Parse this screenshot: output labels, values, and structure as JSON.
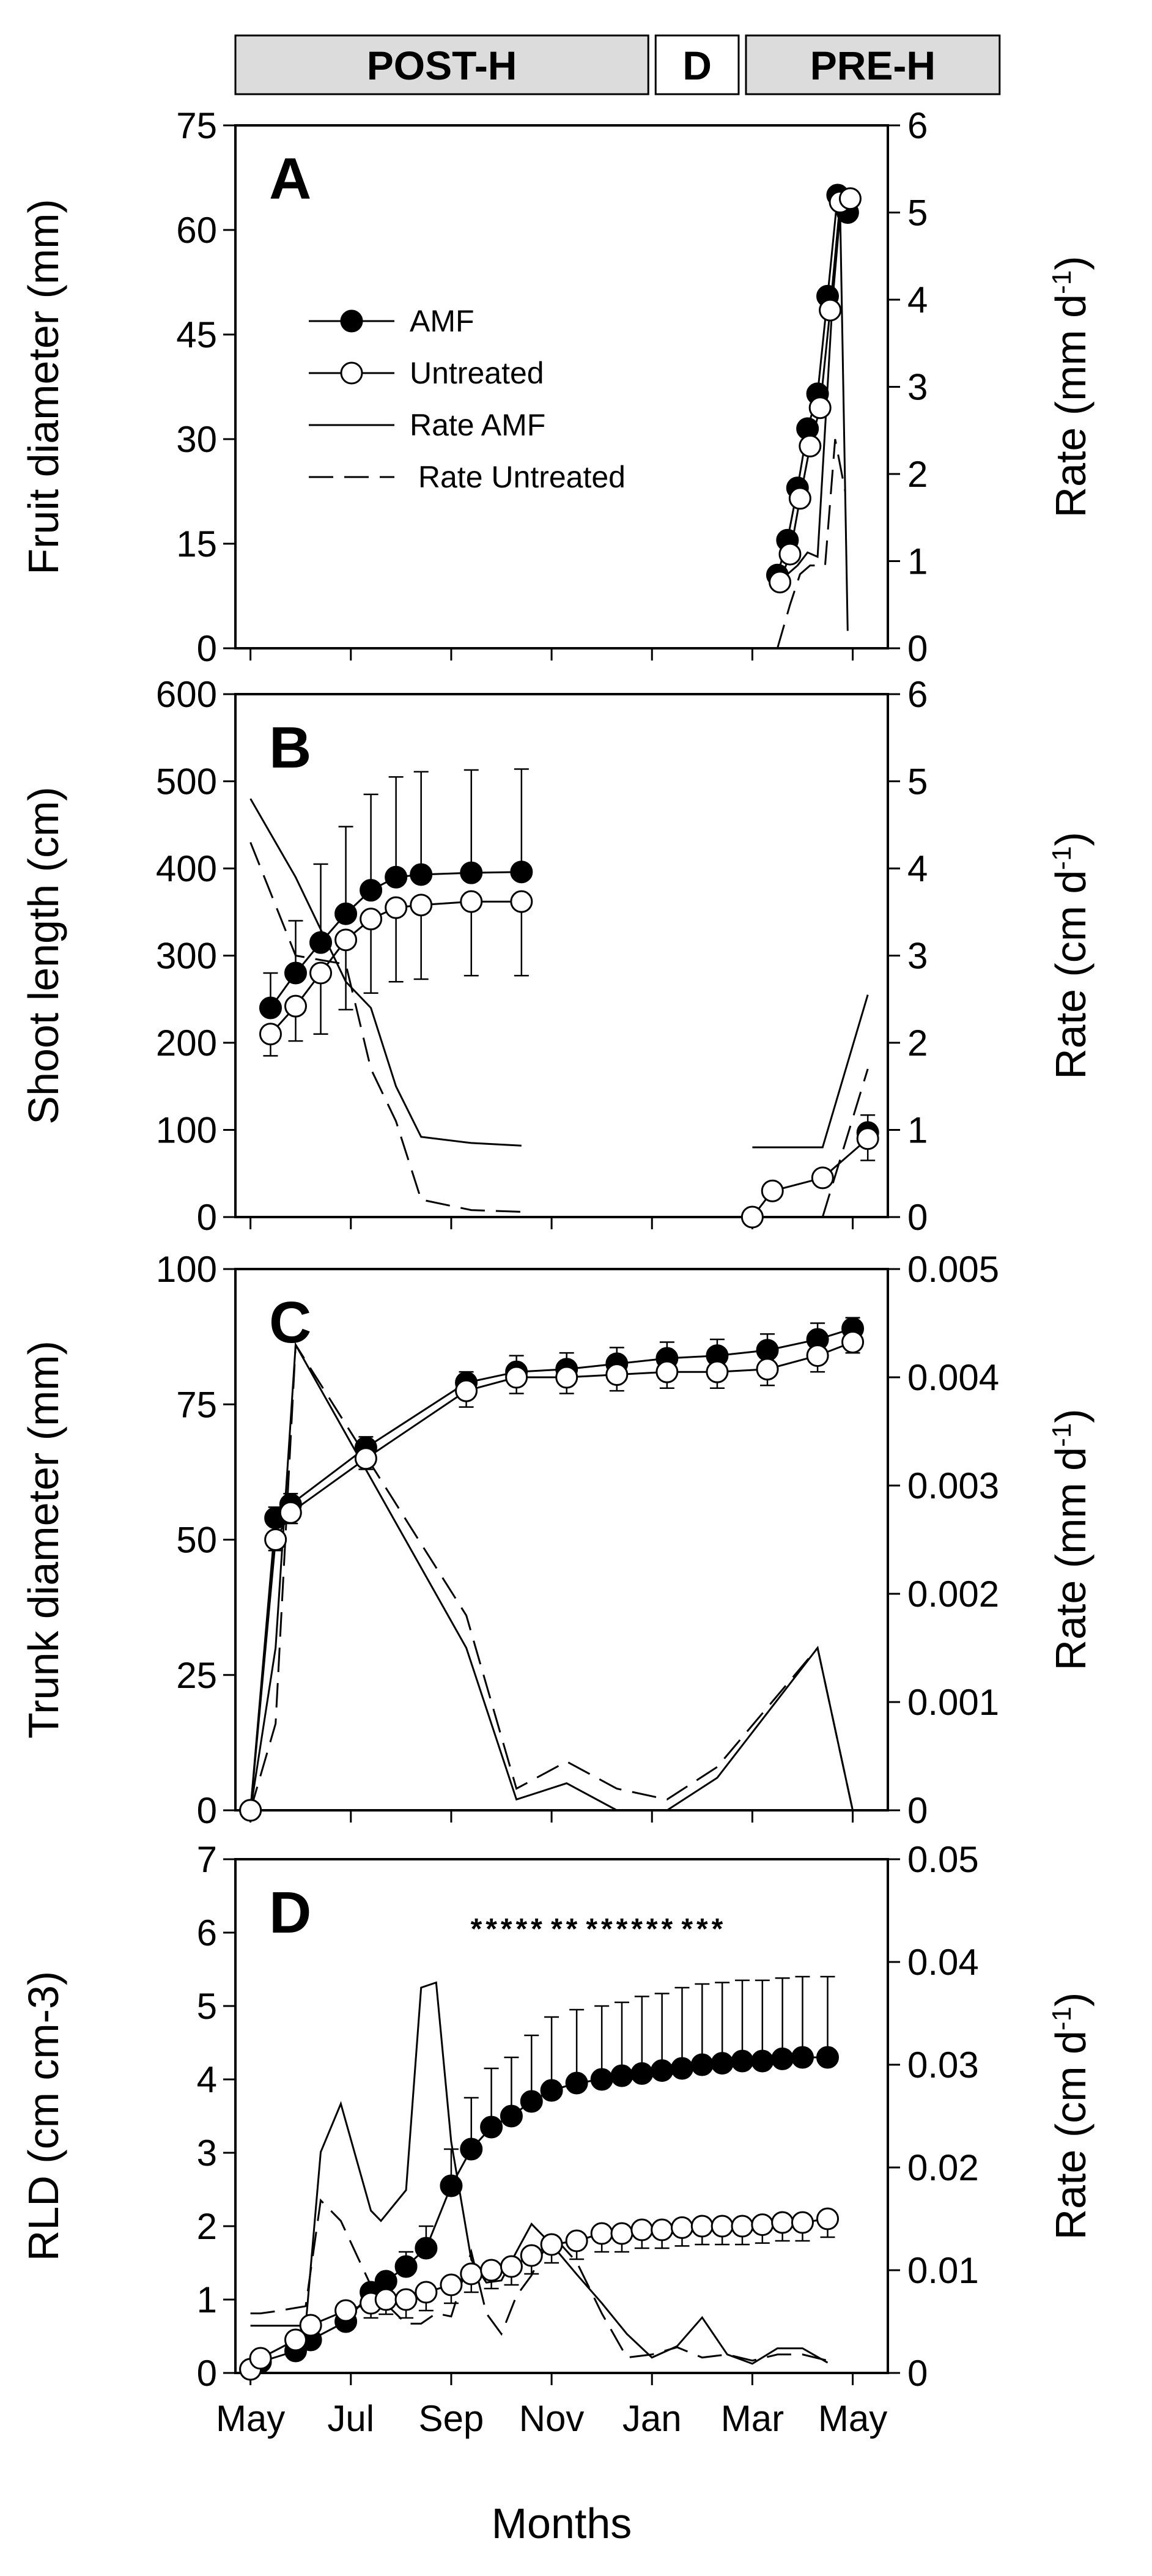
{
  "phases": [
    {
      "label": "POST-H",
      "x0": -0.3,
      "x1": 8.0,
      "fill": "#dcdcdc"
    },
    {
      "label": "D",
      "x0": 8.0,
      "x1": 9.8,
      "fill": "#ffffff"
    },
    {
      "label": "PRE-H",
      "x0": 9.8,
      "x1": 15.0,
      "fill": "#dcdcdc"
    }
  ],
  "x_axis": {
    "label": "Months",
    "tick_values": [
      0,
      2,
      4,
      6,
      8,
      10,
      12
    ],
    "tick_labels": [
      "May",
      "Jul",
      "Sep",
      "Nov",
      "Jan",
      "Mar",
      "May"
    ],
    "range": [
      -0.3,
      12.7
    ]
  },
  "legend": {
    "entries": [
      {
        "label": "AMF",
        "kind": "filled-marker"
      },
      {
        "label": "Untreated",
        "kind": "open-marker"
      },
      {
        "label": "Rate AMF",
        "kind": "solid-line"
      },
      {
        "label": " Rate Untreated",
        "kind": "dashed-line"
      }
    ]
  },
  "chart_data": [
    {
      "panel": "A",
      "type": "line",
      "ylabel": "Fruit diameter (mm)",
      "ylim": [
        0,
        75
      ],
      "yticks": [
        0,
        15,
        30,
        45,
        60,
        75
      ],
      "y2label": "Rate (mm d-1)",
      "y2lim": [
        0,
        6
      ],
      "y2ticks": [
        0,
        1,
        2,
        3,
        4,
        5,
        6
      ],
      "series": [
        {
          "name": "AMF",
          "axis": "left",
          "style": "filled",
          "x": [
            10.5,
            10.7,
            10.9,
            11.1,
            11.3,
            11.5,
            11.7,
            11.9
          ],
          "y": [
            10.5,
            15.5,
            23,
            31.5,
            36.5,
            50.5,
            65,
            62.5
          ]
        },
        {
          "name": "Untreated",
          "axis": "left",
          "style": "open",
          "x": [
            10.55,
            10.75,
            10.95,
            11.15,
            11.35,
            11.55,
            11.75,
            11.95
          ],
          "y": [
            9.5,
            13.5,
            21.5,
            29,
            34.5,
            48.5,
            64,
            64.5
          ]
        },
        {
          "name": "Rate AMF",
          "axis": "right",
          "style": "solid",
          "x": [
            10.5,
            10.9,
            11.1,
            11.3,
            11.6,
            11.75,
            11.9
          ],
          "y": [
            0.75,
            0.95,
            1.1,
            1.05,
            4.0,
            5.0,
            0.2
          ]
        },
        {
          "name": "Rate Untreated",
          "axis": "right",
          "style": "dashed",
          "x": [
            10.5,
            10.75,
            10.95,
            11.15,
            11.45,
            11.65,
            11.85
          ],
          "y": [
            0.0,
            0.5,
            0.85,
            0.95,
            0.95,
            2.4,
            1.8
          ]
        }
      ]
    },
    {
      "panel": "B",
      "type": "line",
      "ylabel": "Shoot length (cm)",
      "ylim": [
        0,
        600
      ],
      "yticks": [
        0,
        100,
        200,
        300,
        400,
        500,
        600
      ],
      "y2label": "Rate (cm d-1)",
      "y2lim": [
        0,
        6
      ],
      "y2ticks": [
        0,
        1,
        2,
        3,
        4,
        5,
        6
      ],
      "series": [
        {
          "name": "AMF",
          "axis": "left",
          "style": "filled",
          "x": [
            0.4,
            0.9,
            1.4,
            1.9,
            2.4,
            2.9,
            3.4,
            4.4,
            5.4,
            12.3
          ],
          "y": [
            240,
            280,
            315,
            348,
            375,
            390,
            393,
            395,
            396,
            97
          ],
          "err": [
            40,
            60,
            90,
            100,
            110,
            115,
            118,
            118,
            118,
            20
          ]
        },
        {
          "name": "Untreated",
          "axis": "left",
          "style": "open",
          "x": [
            0.4,
            0.9,
            1.4,
            1.9,
            2.4,
            2.9,
            3.4,
            4.4,
            5.4,
            10.0,
            10.4,
            11.4,
            12.3
          ],
          "y": [
            210,
            242,
            280,
            318,
            342,
            355,
            358,
            362,
            362,
            0,
            30,
            45,
            90
          ],
          "err": [
            25,
            40,
            70,
            80,
            85,
            85,
            85,
            85,
            85,
            0,
            0,
            0,
            25
          ]
        },
        {
          "name": "Rate AMF",
          "axis": "right",
          "style": "solid",
          "x": [
            0.0,
            0.9,
            1.9,
            2.4,
            2.9,
            3.4,
            4.4,
            5.4,
            10.0,
            11.4,
            12.3
          ],
          "y": [
            4.8,
            3.9,
            2.7,
            2.4,
            1.5,
            0.92,
            0.85,
            0.82,
            0.8,
            0.8,
            2.55
          ],
          "segments": [
            [
              0,
              7
            ],
            [
              8,
              10
            ]
          ]
        },
        {
          "name": "Rate Untreated",
          "axis": "right",
          "style": "dashed",
          "x": [
            0.0,
            0.9,
            1.9,
            2.4,
            2.9,
            3.4,
            4.4,
            5.4,
            11.4,
            12.3
          ],
          "y": [
            4.3,
            3.0,
            2.9,
            1.7,
            1.1,
            0.2,
            0.08,
            0.06,
            0.0,
            1.7
          ],
          "segments": [
            [
              0,
              7
            ],
            [
              8,
              9
            ]
          ]
        }
      ]
    },
    {
      "panel": "C",
      "type": "line",
      "ylabel": "Trunk diameter (mm)",
      "ylim": [
        0,
        100
      ],
      "yticks": [
        0,
        25,
        50,
        75,
        100
      ],
      "y2label": "Rate (mm d-1)",
      "y2lim": [
        0,
        0.005
      ],
      "y2ticks": [
        0,
        0.001,
        0.002,
        0.003,
        0.004,
        0.005
      ],
      "y2ticklabels": [
        "0",
        "0.001",
        "0.002",
        "0.003",
        "0.004",
        "0.005"
      ],
      "series": [
        {
          "name": "AMF",
          "axis": "left",
          "style": "filled",
          "x": [
            0.0,
            0.5,
            0.8,
            2.3,
            4.3,
            5.3,
            6.3,
            7.3,
            8.3,
            9.3,
            10.3,
            11.3,
            12.0
          ],
          "y": [
            0,
            54,
            56.5,
            67,
            79,
            81,
            81.5,
            82.5,
            83.5,
            84,
            85,
            87,
            89
          ],
          "err": [
            0,
            2,
            2,
            2,
            2,
            3,
            3,
            3,
            3,
            3,
            3,
            3,
            2
          ]
        },
        {
          "name": "Untreated",
          "axis": "left",
          "style": "open",
          "x": [
            0.0,
            0.5,
            0.8,
            2.3,
            4.3,
            5.3,
            6.3,
            7.3,
            8.3,
            9.3,
            10.3,
            11.3,
            12.0
          ],
          "y": [
            0,
            50,
            55,
            65,
            77.5,
            80,
            80,
            80.5,
            81,
            81,
            81.5,
            84,
            86.5
          ],
          "err": [
            0,
            2,
            2,
            2,
            3,
            3,
            3,
            3,
            3,
            3,
            3,
            3,
            2
          ]
        },
        {
          "name": "Rate AMF",
          "axis": "right",
          "style": "solid",
          "x": [
            0.0,
            0.5,
            0.9,
            4.3,
            5.3,
            6.3,
            7.3,
            8.3,
            9.3,
            11.3,
            12.0
          ],
          "y": [
            0,
            0.0015,
            0.0043,
            0.0015,
            0.0001,
            0.00025,
            0.0,
            0.0,
            0.0003,
            0.0015,
            0.0
          ]
        },
        {
          "name": "Rate Untreated",
          "axis": "right",
          "style": "dashed",
          "x": [
            0.0,
            0.5,
            0.9,
            4.3,
            5.3,
            6.3,
            7.3,
            8.3,
            9.3,
            11.3,
            12.0
          ],
          "y": [
            0,
            0.0008,
            0.0043,
            0.0018,
            0.0002,
            0.00045,
            0.0002,
            0.0001,
            0.0004,
            0.0015,
            0.0
          ]
        }
      ]
    },
    {
      "panel": "D",
      "type": "line",
      "ylabel": "RLD (cm cm-3)",
      "ylim": [
        0,
        7
      ],
      "yticks": [
        0,
        1,
        2,
        3,
        4,
        5,
        6,
        7
      ],
      "y2label": "Rate (cm d-1)",
      "y2lim": [
        0,
        0.05
      ],
      "y2ticks": [
        0,
        0.01,
        0.02,
        0.03,
        0.04,
        0.05
      ],
      "y2ticklabels": [
        "0",
        "0.01",
        "0.02",
        "0.03",
        "0.04",
        "0.05"
      ],
      "significance_marker": "*",
      "significance_x": [
        4.5,
        4.8,
        5.1,
        5.4,
        5.7,
        6.1,
        6.4,
        6.8,
        7.1,
        7.4,
        7.7,
        8.0,
        8.3,
        8.7,
        9.0,
        9.3
      ],
      "series": [
        {
          "name": "AMF",
          "axis": "left",
          "style": "filled",
          "x": [
            0.0,
            0.2,
            0.9,
            1.2,
            1.9,
            2.4,
            2.7,
            3.1,
            3.5,
            4.0,
            4.4,
            4.8,
            5.2,
            5.6,
            6.0,
            6.5,
            7.0,
            7.4,
            7.8,
            8.2,
            8.6,
            9.0,
            9.4,
            9.8,
            10.2,
            10.6,
            11.0,
            11.5
          ],
          "y": [
            0.05,
            0.15,
            0.3,
            0.45,
            0.7,
            1.1,
            1.25,
            1.45,
            1.7,
            2.55,
            3.05,
            3.35,
            3.5,
            3.7,
            3.85,
            3.95,
            4.0,
            4.05,
            4.08,
            4.12,
            4.15,
            4.2,
            4.22,
            4.25,
            4.25,
            4.28,
            4.3,
            4.3
          ],
          "err": [
            0,
            0,
            0,
            0,
            0.1,
            0.1,
            0.1,
            0.2,
            0.3,
            0.5,
            0.7,
            0.8,
            0.8,
            0.9,
            1.0,
            1.0,
            1.0,
            1.0,
            1.05,
            1.05,
            1.1,
            1.1,
            1.1,
            1.1,
            1.1,
            1.1,
            1.1,
            1.1
          ]
        },
        {
          "name": "Untreated",
          "axis": "left",
          "style": "open",
          "x": [
            0.0,
            0.2,
            0.9,
            1.2,
            1.9,
            2.4,
            2.7,
            3.1,
            3.5,
            4.0,
            4.4,
            4.8,
            5.2,
            5.6,
            6.0,
            6.5,
            7.0,
            7.4,
            7.8,
            8.2,
            8.6,
            9.0,
            9.4,
            9.8,
            10.2,
            10.6,
            11.0,
            11.5
          ],
          "y": [
            0.05,
            0.2,
            0.45,
            0.65,
            0.85,
            0.95,
            1.0,
            1.0,
            1.1,
            1.2,
            1.35,
            1.4,
            1.45,
            1.6,
            1.75,
            1.8,
            1.9,
            1.9,
            1.95,
            1.95,
            1.98,
            2.0,
            2.0,
            2.0,
            2.02,
            2.05,
            2.05,
            2.1
          ],
          "err": [
            0,
            0,
            0.05,
            0.1,
            0.15,
            0.2,
            0.2,
            0.25,
            0.25,
            0.25,
            0.25,
            0.25,
            0.25,
            0.25,
            0.25,
            0.25,
            0.25,
            0.25,
            0.25,
            0.25,
            0.25,
            0.25,
            0.25,
            0.25,
            0.25,
            0.25,
            0.25,
            0.25
          ]
        },
        {
          "name": "Rate AMF",
          "axis": "right",
          "style": "solid",
          "x": [
            0.0,
            0.2,
            0.5,
            1.1,
            1.4,
            1.8,
            2.4,
            2.6,
            3.1,
            3.4,
            3.7,
            4.0,
            4.4,
            4.7,
            5.0,
            5.3,
            5.6,
            6.0,
            6.5,
            7.0,
            7.5,
            8.0,
            8.5,
            9.0,
            9.5,
            10.0,
            10.5,
            11.0,
            11.5
          ],
          "y": [
            0.0046,
            0.0046,
            0.0046,
            0.0046,
            0.0215,
            0.0262,
            0.0158,
            0.0148,
            0.0178,
            0.0375,
            0.038,
            0.0225,
            0.011,
            0.0088,
            0.009,
            0.0118,
            0.0145,
            0.0125,
            0.0096,
            0.0068,
            0.0038,
            0.0015,
            0.0026,
            0.0054,
            0.0018,
            0.0009,
            0.0024,
            0.0024,
            0.001
          ]
        },
        {
          "name": "Rate Untreated",
          "axis": "right",
          "style": "dashed",
          "x": [
            0.0,
            0.2,
            0.5,
            1.1,
            1.4,
            1.8,
            2.4,
            2.6,
            3.1,
            3.4,
            3.7,
            4.0,
            4.4,
            4.7,
            5.0,
            5.3,
            5.6,
            6.0,
            6.5,
            7.0,
            7.5,
            8.0,
            8.5,
            9.0,
            9.5,
            10.0,
            10.5,
            11.0,
            11.5
          ],
          "y": [
            0.0058,
            0.0058,
            0.006,
            0.0065,
            0.0168,
            0.0148,
            0.0085,
            0.0072,
            0.0048,
            0.0048,
            0.0058,
            0.0055,
            0.0118,
            0.0058,
            0.0038,
            0.0075,
            0.0095,
            0.0135,
            0.0108,
            0.0058,
            0.0015,
            0.0018,
            0.0025,
            0.0015,
            0.0018,
            0.0012,
            0.0018,
            0.0018,
            0.0012
          ]
        }
      ]
    }
  ]
}
